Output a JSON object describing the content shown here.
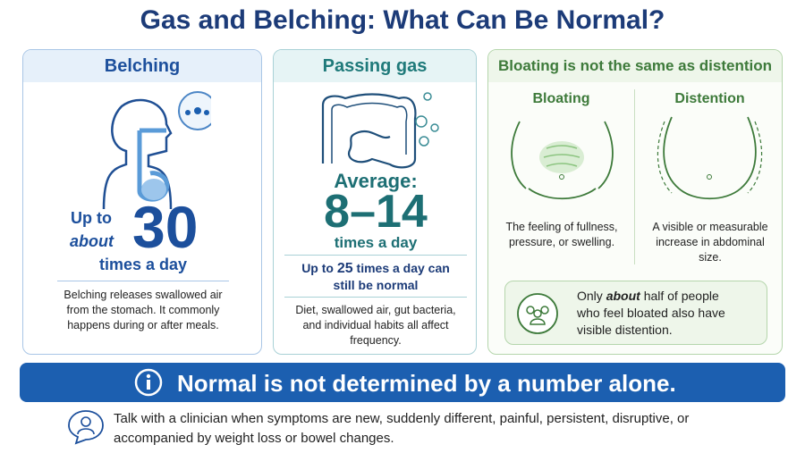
{
  "title": "Gas and Belching: What Can Be Normal?",
  "belching": {
    "heading": "Belching",
    "prefix": "Up to",
    "qualifier": "about",
    "number": "30",
    "unit": "times a day",
    "description": "Belching releases swallowed air from the stomach. It commonly happens during or after meals."
  },
  "passing_gas": {
    "heading": "Passing gas",
    "label": "Average:",
    "range": "8–14",
    "unit": "times a day",
    "upper_prefix": "Up to",
    "upper_number": "25",
    "upper_suffix": "times a day can still be normal",
    "description": "Diet, swallowed air, gut bacteria, and individual habits all affect frequency."
  },
  "bloating": {
    "heading": "Bloating is not the same as distention",
    "bloating": {
      "label": "Bloating",
      "description": "The feeling of fullness, pressure, or swelling."
    },
    "distention": {
      "label": "Distention",
      "description": "A visible or measurable increase in abdominal size."
    },
    "note": {
      "pre": "Only",
      "emphasis": "about",
      "post": "half of people who feel bloated also have visible distention."
    }
  },
  "banner": "Normal is not determined by a number alone.",
  "footer": "Talk with a clinician when symptoms are new, suddenly different, painful, persistent, disruptive, or accompanied by weight loss or bowel changes."
}
